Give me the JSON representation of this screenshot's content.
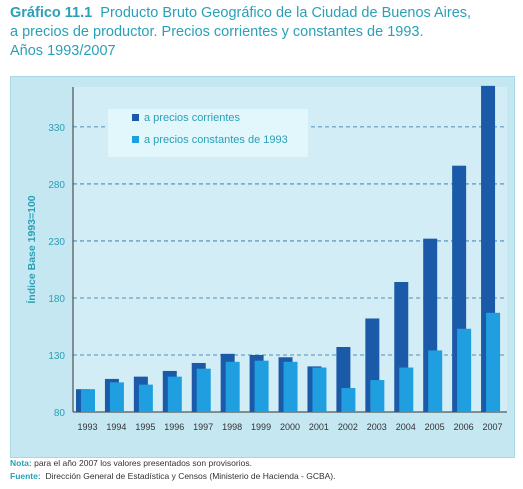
{
  "header": {
    "label": "Gráfico 11.1",
    "line1": "Producto Bruto Geográfico de la Ciudad de Buenos Aires,",
    "line2": "a precios de productor. Precios corrientes y constantes de 1993.",
    "line3": "Años 1993/2007"
  },
  "notes": {
    "nota_label": "Nota:",
    "nota_text": "para el año 2007 los valores presentados son provisorios.",
    "fuente_label": "Fuente:",
    "fuente_text": "Dirección General de Estadística y Censos (Ministerio de Hacienda - GCBA)."
  },
  "colors": {
    "frame_bg": "#c5e7f1",
    "plot_bg": "#d2edf5",
    "legend_bg": "#e2f7fb",
    "corrientes": "#1b5aa8",
    "constantes": "#1f9fe0",
    "axis_text": "#2aa0b8"
  },
  "chart_data": {
    "type": "bar",
    "ylabel": "Índice Base 1993=100",
    "ylim": [
      80,
      365
    ],
    "yticks": [
      80,
      130,
      180,
      230,
      280,
      330
    ],
    "grid": "horizontal dashed",
    "legend_position": "top-left",
    "categories": [
      "1993",
      "1994",
      "1995",
      "1996",
      "1997",
      "1998",
      "1999",
      "2000",
      "2001",
      "2002",
      "2003",
      "2004",
      "2005",
      "2006",
      "2007"
    ],
    "series": [
      {
        "name": "a precios corrientes",
        "values": [
          100,
          109,
          111,
          116,
          123,
          131,
          130,
          128,
          120,
          137,
          162,
          194,
          232,
          296,
          366
        ]
      },
      {
        "name": "a precios constantes de 1993",
        "values": [
          100,
          106,
          104,
          111,
          118,
          124,
          125,
          124,
          119,
          101,
          108,
          119,
          134,
          153,
          167
        ]
      }
    ]
  }
}
